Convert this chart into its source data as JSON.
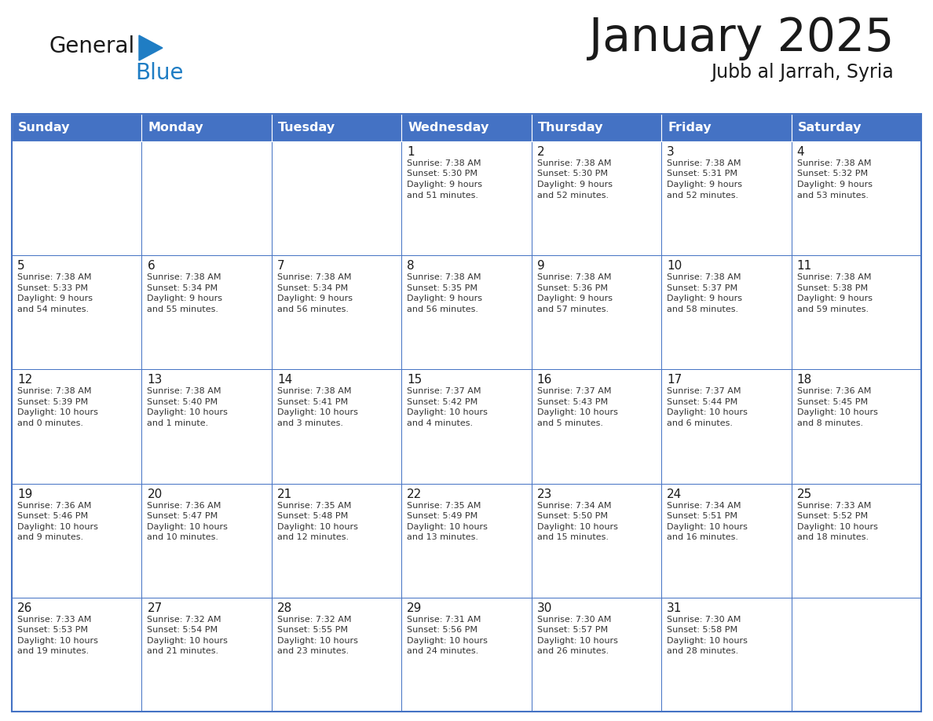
{
  "title": "January 2025",
  "subtitle": "Jubb al Jarrah, Syria",
  "header_bg_color": "#4472C4",
  "header_text_color": "#FFFFFF",
  "border_color": "#4472C4",
  "cell_border_color": "#A0A0A0",
  "general_black": "#1a1a1a",
  "blue_color": "#1F7DC4",
  "cell_text_color": "#333333",
  "day_names": [
    "Sunday",
    "Monday",
    "Tuesday",
    "Wednesday",
    "Thursday",
    "Friday",
    "Saturday"
  ],
  "days": [
    {
      "date": 1,
      "col": 3,
      "row": 0,
      "sunrise": "7:38 AM",
      "sunset": "5:30 PM",
      "daylight_h": "9 hours",
      "daylight_m": "and 51 minutes."
    },
    {
      "date": 2,
      "col": 4,
      "row": 0,
      "sunrise": "7:38 AM",
      "sunset": "5:30 PM",
      "daylight_h": "9 hours",
      "daylight_m": "and 52 minutes."
    },
    {
      "date": 3,
      "col": 5,
      "row": 0,
      "sunrise": "7:38 AM",
      "sunset": "5:31 PM",
      "daylight_h": "9 hours",
      "daylight_m": "and 52 minutes."
    },
    {
      "date": 4,
      "col": 6,
      "row": 0,
      "sunrise": "7:38 AM",
      "sunset": "5:32 PM",
      "daylight_h": "9 hours",
      "daylight_m": "and 53 minutes."
    },
    {
      "date": 5,
      "col": 0,
      "row": 1,
      "sunrise": "7:38 AM",
      "sunset": "5:33 PM",
      "daylight_h": "9 hours",
      "daylight_m": "and 54 minutes."
    },
    {
      "date": 6,
      "col": 1,
      "row": 1,
      "sunrise": "7:38 AM",
      "sunset": "5:34 PM",
      "daylight_h": "9 hours",
      "daylight_m": "and 55 minutes."
    },
    {
      "date": 7,
      "col": 2,
      "row": 1,
      "sunrise": "7:38 AM",
      "sunset": "5:34 PM",
      "daylight_h": "9 hours",
      "daylight_m": "and 56 minutes."
    },
    {
      "date": 8,
      "col": 3,
      "row": 1,
      "sunrise": "7:38 AM",
      "sunset": "5:35 PM",
      "daylight_h": "9 hours",
      "daylight_m": "and 56 minutes."
    },
    {
      "date": 9,
      "col": 4,
      "row": 1,
      "sunrise": "7:38 AM",
      "sunset": "5:36 PM",
      "daylight_h": "9 hours",
      "daylight_m": "and 57 minutes."
    },
    {
      "date": 10,
      "col": 5,
      "row": 1,
      "sunrise": "7:38 AM",
      "sunset": "5:37 PM",
      "daylight_h": "9 hours",
      "daylight_m": "and 58 minutes."
    },
    {
      "date": 11,
      "col": 6,
      "row": 1,
      "sunrise": "7:38 AM",
      "sunset": "5:38 PM",
      "daylight_h": "9 hours",
      "daylight_m": "and 59 minutes."
    },
    {
      "date": 12,
      "col": 0,
      "row": 2,
      "sunrise": "7:38 AM",
      "sunset": "5:39 PM",
      "daylight_h": "10 hours",
      "daylight_m": "and 0 minutes."
    },
    {
      "date": 13,
      "col": 1,
      "row": 2,
      "sunrise": "7:38 AM",
      "sunset": "5:40 PM",
      "daylight_h": "10 hours",
      "daylight_m": "and 1 minute."
    },
    {
      "date": 14,
      "col": 2,
      "row": 2,
      "sunrise": "7:38 AM",
      "sunset": "5:41 PM",
      "daylight_h": "10 hours",
      "daylight_m": "and 3 minutes."
    },
    {
      "date": 15,
      "col": 3,
      "row": 2,
      "sunrise": "7:37 AM",
      "sunset": "5:42 PM",
      "daylight_h": "10 hours",
      "daylight_m": "and 4 minutes."
    },
    {
      "date": 16,
      "col": 4,
      "row": 2,
      "sunrise": "7:37 AM",
      "sunset": "5:43 PM",
      "daylight_h": "10 hours",
      "daylight_m": "and 5 minutes."
    },
    {
      "date": 17,
      "col": 5,
      "row": 2,
      "sunrise": "7:37 AM",
      "sunset": "5:44 PM",
      "daylight_h": "10 hours",
      "daylight_m": "and 6 minutes."
    },
    {
      "date": 18,
      "col": 6,
      "row": 2,
      "sunrise": "7:36 AM",
      "sunset": "5:45 PM",
      "daylight_h": "10 hours",
      "daylight_m": "and 8 minutes."
    },
    {
      "date": 19,
      "col": 0,
      "row": 3,
      "sunrise": "7:36 AM",
      "sunset": "5:46 PM",
      "daylight_h": "10 hours",
      "daylight_m": "and 9 minutes."
    },
    {
      "date": 20,
      "col": 1,
      "row": 3,
      "sunrise": "7:36 AM",
      "sunset": "5:47 PM",
      "daylight_h": "10 hours",
      "daylight_m": "and 10 minutes."
    },
    {
      "date": 21,
      "col": 2,
      "row": 3,
      "sunrise": "7:35 AM",
      "sunset": "5:48 PM",
      "daylight_h": "10 hours",
      "daylight_m": "and 12 minutes."
    },
    {
      "date": 22,
      "col": 3,
      "row": 3,
      "sunrise": "7:35 AM",
      "sunset": "5:49 PM",
      "daylight_h": "10 hours",
      "daylight_m": "and 13 minutes."
    },
    {
      "date": 23,
      "col": 4,
      "row": 3,
      "sunrise": "7:34 AM",
      "sunset": "5:50 PM",
      "daylight_h": "10 hours",
      "daylight_m": "and 15 minutes."
    },
    {
      "date": 24,
      "col": 5,
      "row": 3,
      "sunrise": "7:34 AM",
      "sunset": "5:51 PM",
      "daylight_h": "10 hours",
      "daylight_m": "and 16 minutes."
    },
    {
      "date": 25,
      "col": 6,
      "row": 3,
      "sunrise": "7:33 AM",
      "sunset": "5:52 PM",
      "daylight_h": "10 hours",
      "daylight_m": "and 18 minutes."
    },
    {
      "date": 26,
      "col": 0,
      "row": 4,
      "sunrise": "7:33 AM",
      "sunset": "5:53 PM",
      "daylight_h": "10 hours",
      "daylight_m": "and 19 minutes."
    },
    {
      "date": 27,
      "col": 1,
      "row": 4,
      "sunrise": "7:32 AM",
      "sunset": "5:54 PM",
      "daylight_h": "10 hours",
      "daylight_m": "and 21 minutes."
    },
    {
      "date": 28,
      "col": 2,
      "row": 4,
      "sunrise": "7:32 AM",
      "sunset": "5:55 PM",
      "daylight_h": "10 hours",
      "daylight_m": "and 23 minutes."
    },
    {
      "date": 29,
      "col": 3,
      "row": 4,
      "sunrise": "7:31 AM",
      "sunset": "5:56 PM",
      "daylight_h": "10 hours",
      "daylight_m": "and 24 minutes."
    },
    {
      "date": 30,
      "col": 4,
      "row": 4,
      "sunrise": "7:30 AM",
      "sunset": "5:57 PM",
      "daylight_h": "10 hours",
      "daylight_m": "and 26 minutes."
    },
    {
      "date": 31,
      "col": 5,
      "row": 4,
      "sunrise": "7:30 AM",
      "sunset": "5:58 PM",
      "daylight_h": "10 hours",
      "daylight_m": "and 28 minutes."
    }
  ]
}
